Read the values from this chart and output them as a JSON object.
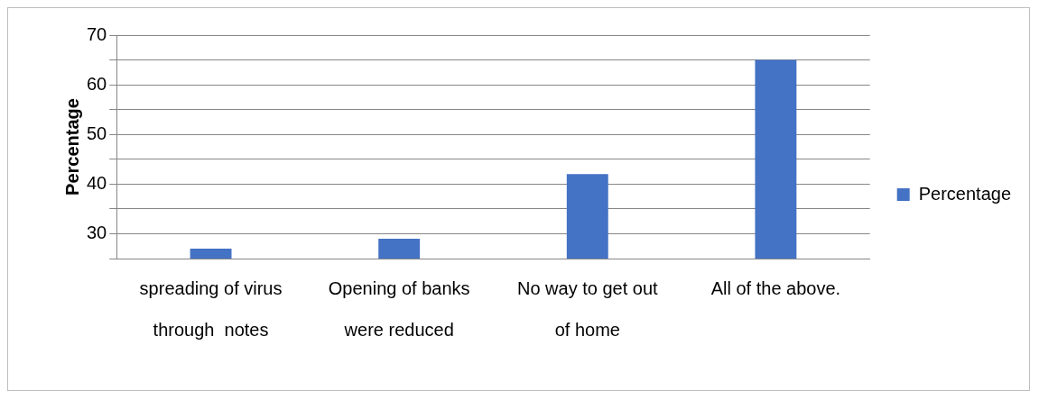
{
  "chart_data": {
    "type": "bar",
    "ylabel": "Percentage",
    "categories": [
      "spreading of virus through  notes",
      "Opening of banks were reduced",
      "No way to get out of home",
      "All of the above."
    ],
    "series": [
      {
        "name": "Percentage",
        "color": "#4472c4",
        "values": [
          27,
          29,
          42,
          65
        ]
      }
    ],
    "ylim": [
      25,
      70
    ],
    "yticks": [
      {
        "value": 25,
        "label": null
      },
      30,
      {
        "value": 35,
        "label": null
      },
      40,
      {
        "value": 45,
        "label": null
      },
      50,
      {
        "value": 55,
        "label": null
      },
      60,
      {
        "value": 65,
        "label": null
      },
      70
    ],
    "grid": "y",
    "legend": "right"
  }
}
